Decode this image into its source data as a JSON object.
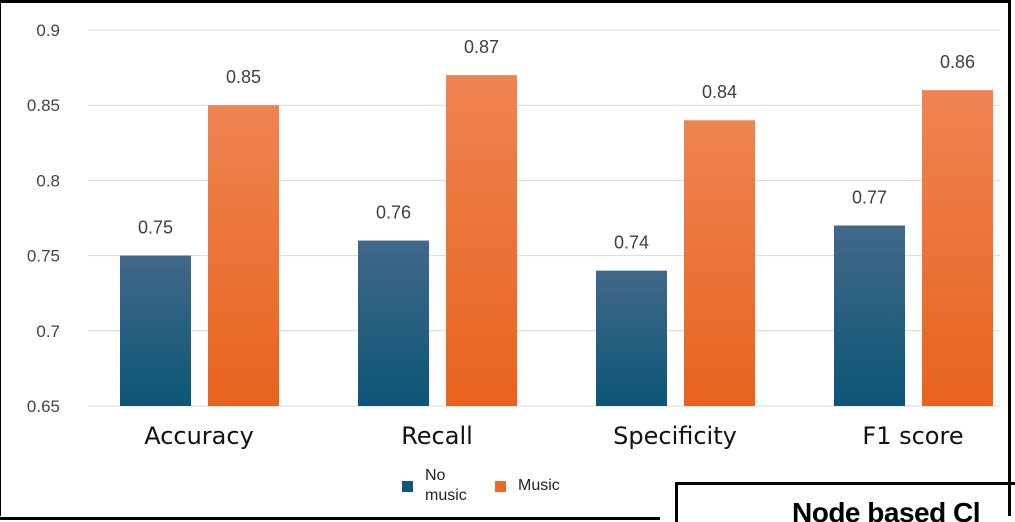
{
  "chart_data": {
    "type": "bar",
    "categories": [
      "Accuracy",
      "Recall",
      "Specificity",
      "F1 score"
    ],
    "series": [
      {
        "name": "No music",
        "values": [
          0.75,
          0.76,
          0.74,
          0.77
        ],
        "color_top": "#41688a",
        "color_bottom": "#0c5676"
      },
      {
        "name": "Music",
        "values": [
          0.85,
          0.87,
          0.84,
          0.86
        ],
        "color_top": "#ee8452",
        "color_bottom": "#e8631d"
      }
    ],
    "yticks": [
      "0.65",
      "0.7",
      "0.75",
      "0.8",
      "0.85",
      "0.9"
    ],
    "ylim": [
      0.65,
      0.9
    ],
    "data_labels": true,
    "grid": true,
    "legend_position": "bottom-center"
  },
  "legend": {
    "no_music_label": "No music",
    "music_label": "Music",
    "no_music_color": "#0e5778",
    "music_color": "#eb6a2a"
  },
  "inset": {
    "text": "Node based Cl"
  }
}
